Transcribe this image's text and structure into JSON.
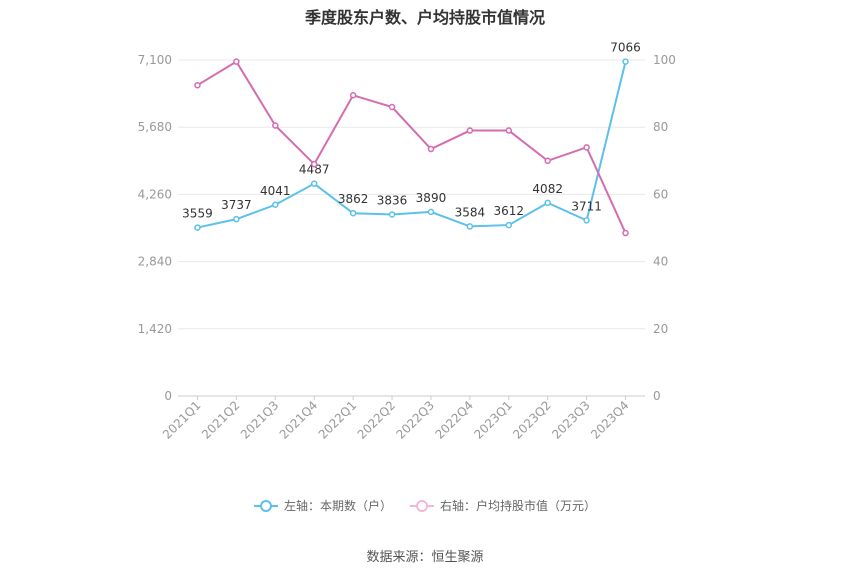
{
  "chart_data": {
    "type": "line",
    "title": "季度股东户数、户均持股市值情况",
    "categories": [
      "2021Q1",
      "2021Q2",
      "2021Q3",
      "2021Q4",
      "2022Q1",
      "2022Q2",
      "2022Q3",
      "2022Q4",
      "2023Q1",
      "2023Q2",
      "2023Q3",
      "2023Q4"
    ],
    "left_axis": {
      "ticks": [
        "0",
        "1,420",
        "2,840",
        "4,260",
        "5,680",
        "7,100"
      ],
      "ylim": [
        0,
        7100
      ]
    },
    "right_axis": {
      "ticks": [
        "0",
        "20",
        "40",
        "60",
        "80",
        "100"
      ],
      "ylim": [
        0,
        100
      ]
    },
    "series": [
      {
        "name": "左轴：本期数（户）",
        "axis": "left",
        "color": "#5bc0eb",
        "values": [
          3559,
          3737,
          4041,
          4487,
          3862,
          3836,
          3890,
          3584,
          3612,
          4082,
          3711,
          7066
        ],
        "labels": [
          "3559",
          "3737",
          "4041",
          "4487",
          "3862",
          "3836",
          "3890",
          "3584",
          "3612",
          "4082",
          "3711",
          "7066"
        ]
      },
      {
        "name": "右轴：户均持股市值（万元）",
        "axis": "right",
        "color": "#d56cb0",
        "values": [
          92.5,
          99.5,
          80.5,
          69,
          89.5,
          86,
          73.5,
          79,
          79,
          70,
          74,
          48.5
        ]
      }
    ],
    "grid": true,
    "legend_position": "bottom"
  },
  "source": "数据来源：恒生聚源"
}
